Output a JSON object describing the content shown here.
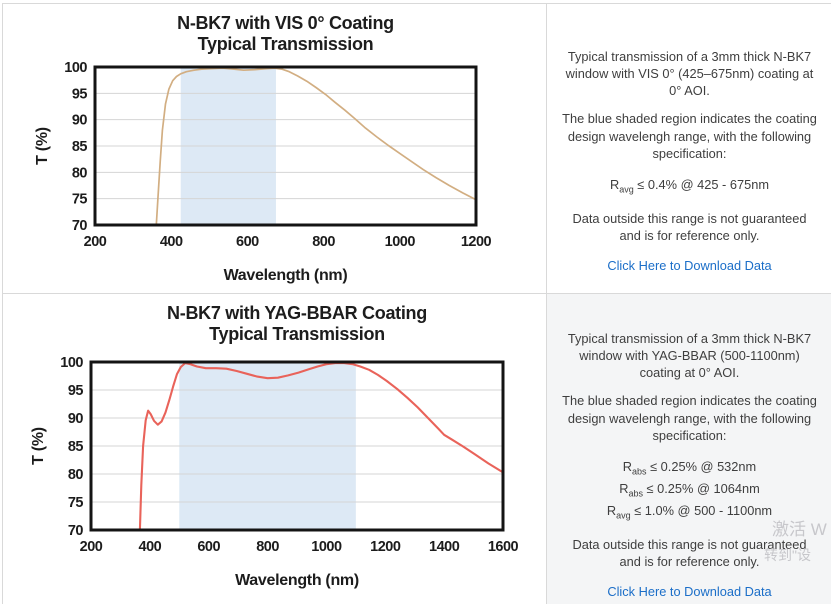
{
  "chart_data": [
    {
      "type": "line",
      "title": "N-BK7 with VIS 0° Coating",
      "subtitle": "Typical Transmission",
      "xlabel": "Wavelength (nm)",
      "ylabel": "T (%)",
      "xlim": [
        200,
        1200
      ],
      "ylim": [
        70,
        100
      ],
      "xticks": [
        200,
        400,
        600,
        800,
        1000,
        1200
      ],
      "yticks": [
        70,
        75,
        80,
        85,
        90,
        95,
        100
      ],
      "grid": "horizontal",
      "band": {
        "from": 425,
        "to": 675,
        "color": "#dde9f5"
      },
      "line_color": "#d2ae82",
      "line_width": 1.7,
      "series": [
        {
          "name": "Typical Transmission",
          "points": [
            [
              357,
              63
            ],
            [
              361,
              70
            ],
            [
              365,
              75
            ],
            [
              371,
              82
            ],
            [
              377,
              88
            ],
            [
              385,
              93
            ],
            [
              394,
              95.8
            ],
            [
              404,
              97.4
            ],
            [
              414,
              98.2
            ],
            [
              425,
              98.7
            ],
            [
              440,
              99.1
            ],
            [
              460,
              99.4
            ],
            [
              480,
              99.6
            ],
            [
              505,
              99.7
            ],
            [
              535,
              99.8
            ],
            [
              565,
              99.6
            ],
            [
              590,
              99.4
            ],
            [
              620,
              99.5
            ],
            [
              650,
              99.7
            ],
            [
              672,
              99.8
            ],
            [
              690,
              99.6
            ],
            [
              710,
              99.1
            ],
            [
              732,
              98.3
            ],
            [
              756,
              97.3
            ],
            [
              780,
              96.1
            ],
            [
              805,
              94.8
            ],
            [
              830,
              93.3
            ],
            [
              856,
              91.8
            ],
            [
              882,
              90.2
            ],
            [
              910,
              88.4
            ],
            [
              940,
              86.7
            ],
            [
              970,
              85.1
            ],
            [
              1000,
              83.6
            ],
            [
              1030,
              82.1
            ],
            [
              1062,
              80.5
            ],
            [
              1095,
              79
            ],
            [
              1130,
              77.5
            ],
            [
              1165,
              76.1
            ],
            [
              1200,
              74.8
            ]
          ]
        }
      ]
    },
    {
      "type": "line",
      "title": "N-BK7 with YAG-BBAR Coating",
      "subtitle": "Typical Transmission",
      "xlabel": "Wavelength (nm)",
      "ylabel": "T (%)",
      "xlim": [
        200,
        1600
      ],
      "ylim": [
        70,
        100
      ],
      "xticks": [
        200,
        400,
        600,
        800,
        1000,
        1200,
        1400,
        1600
      ],
      "yticks": [
        70,
        75,
        80,
        85,
        90,
        95,
        100
      ],
      "grid": "horizontal",
      "band": {
        "from": 500,
        "to": 1100,
        "color": "#dde9f5"
      },
      "line_color": "#e9635a",
      "line_width": 2.1,
      "series": [
        {
          "name": "Typical Transmission",
          "points": [
            [
              362,
              63
            ],
            [
              366,
              70
            ],
            [
              371,
              78
            ],
            [
              377,
              85
            ],
            [
              386,
              89.6
            ],
            [
              394,
              91.3
            ],
            [
              403,
              90.7
            ],
            [
              414,
              89.5
            ],
            [
              427,
              88.8
            ],
            [
              440,
              89.4
            ],
            [
              453,
              91
            ],
            [
              466,
              93.2
            ],
            [
              479,
              95.6
            ],
            [
              492,
              97.8
            ],
            [
              505,
              99.1
            ],
            [
              520,
              99.8
            ],
            [
              538,
              99.6
            ],
            [
              560,
              99.2
            ],
            [
              590,
              98.9
            ],
            [
              625,
              98.9
            ],
            [
              660,
              98.8
            ],
            [
              695,
              98.4
            ],
            [
              730,
              97.9
            ],
            [
              765,
              97.4
            ],
            [
              800,
              97.1
            ],
            [
              835,
              97.2
            ],
            [
              870,
              97.6
            ],
            [
              905,
              98.1
            ],
            [
              940,
              98.7
            ],
            [
              970,
              99.2
            ],
            [
              1000,
              99.6
            ],
            [
              1030,
              99.8
            ],
            [
              1060,
              99.8
            ],
            [
              1090,
              99.6
            ],
            [
              1115,
              99.2
            ],
            [
              1145,
              98.6
            ],
            [
              1175,
              97.7
            ],
            [
              1205,
              96.6
            ],
            [
              1240,
              95.2
            ],
            [
              1275,
              93.6
            ],
            [
              1310,
              91.9
            ],
            [
              1345,
              90
            ],
            [
              1380,
              88.1
            ],
            [
              1400,
              87
            ],
            [
              1425,
              86.2
            ],
            [
              1465,
              84.9
            ],
            [
              1505,
              83.5
            ],
            [
              1550,
              81.9
            ],
            [
              1600,
              80.3
            ]
          ]
        }
      ]
    }
  ],
  "panels": [
    {
      "paragraph1": "Typical transmission of a 3mm thick N-BK7 window with VIS 0° (425–675nm) coating at 0° AOI.",
      "paragraph2": "The blue shaded region indicates the coating design wavelengh range, with the following specification:",
      "specs": [
        {
          "base": "R",
          "sub": "avg",
          "rest": " ≤ 0.4% @ 425 - 675nm"
        }
      ],
      "paragraph3": "Data outside this range is not guaranteed and is for reference only.",
      "link_label": "Click Here to Download Data"
    },
    {
      "paragraph1": "Typical transmission of a 3mm thick N-BK7 window with YAG-BBAR (500-1100nm) coating at 0° AOI.",
      "paragraph2": "The blue shaded region indicates the coating design wavelengh range, with the following specification:",
      "specs": [
        {
          "base": "R",
          "sub": "abs",
          "rest": " ≤ 0.25% @ 532nm"
        },
        {
          "base": "R",
          "sub": "abs",
          "rest": " ≤ 0.25% @ 1064nm"
        },
        {
          "base": "R",
          "sub": "avg",
          "rest": " ≤ 1.0% @ 500 - 1100nm"
        }
      ],
      "paragraph3": "Data outside this range is not guaranteed and is for reference only.",
      "link_label": "Click Here to Download Data"
    }
  ],
  "watermark": {
    "line1": "激活 W",
    "line2": "转到\"设"
  },
  "colors": {
    "vis_curve": "#d2ae82",
    "yag_curve": "#e9635a",
    "band_blue": "#dde9f5",
    "link_blue": "#1b6ec8",
    "gray_cell": "#f4f5f6"
  }
}
